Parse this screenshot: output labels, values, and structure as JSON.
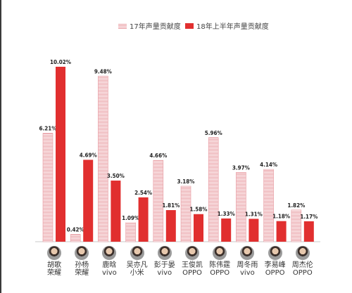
{
  "legend": {
    "series_a": "17年声量贡献度",
    "series_b": "18年上半年声量贡献度"
  },
  "colors": {
    "series_a_fill": "#ffffff",
    "series_a_stripe": "#e89aa0",
    "series_b": "#e12f2f"
  },
  "chart_data": {
    "type": "bar",
    "categories": [
      "胡歌 荣耀",
      "孙杨 荣耀",
      "鹿晗 vivo",
      "吴亦凡 小米",
      "彭于晏 vivo",
      "王俊凯 OPPO",
      "陈伟霆 OPPO",
      "周冬雨 vivo",
      "李易峰 OPPO",
      "周杰伦 OPPO"
    ],
    "category_lines": [
      [
        "胡歌",
        "荣耀"
      ],
      [
        "孙杨",
        "荣耀"
      ],
      [
        "鹿晗",
        "vivo"
      ],
      [
        "吴亦凡",
        "小米"
      ],
      [
        "彭于晏",
        "vivo"
      ],
      [
        "王俊凯",
        "OPPO"
      ],
      [
        "陈伟霆",
        "OPPO"
      ],
      [
        "周冬雨",
        "vivo"
      ],
      [
        "李易峰",
        "OPPO"
      ],
      [
        "周杰伦",
        "OPPO"
      ]
    ],
    "series": [
      {
        "name": "17年声量贡献度",
        "values": [
          6.21,
          0.42,
          9.48,
          1.09,
          4.66,
          3.18,
          5.96,
          3.97,
          4.14,
          1.82
        ],
        "labels": [
          "6.21%",
          "0.42%",
          "9.48%",
          "1.09%",
          "4.66%",
          "3.18%",
          "5.96%",
          "3.97%",
          "4.14%",
          "1.82%"
        ]
      },
      {
        "name": "18年上半年声量贡献度",
        "values": [
          10.02,
          4.69,
          3.5,
          2.54,
          1.81,
          1.58,
          1.33,
          1.31,
          1.18,
          1.17
        ],
        "labels": [
          "10.02%",
          "4.69%",
          "3.50%",
          "2.54%",
          "1.81%",
          "1.58%",
          "1.33%",
          "1.31%",
          "1.18%",
          "1.17%"
        ]
      }
    ],
    "ylim": [
      0,
      10.02
    ],
    "legend_position": "top"
  }
}
